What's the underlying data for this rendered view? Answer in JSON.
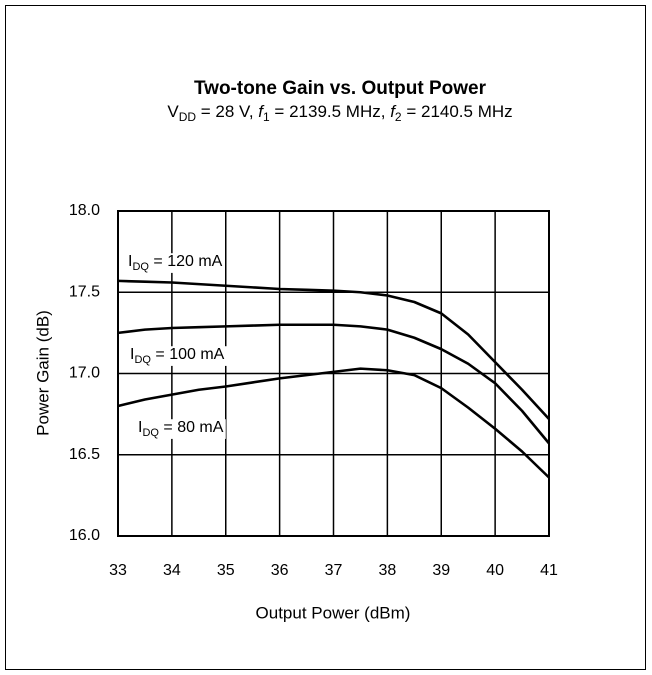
{
  "chart_data": {
    "type": "line",
    "title": "Two-tone Gain vs. Output Power",
    "subtitle_parts": [
      {
        "text": "V"
      },
      {
        "text": "DD",
        "sub": true
      },
      {
        "text": " = 28 V, "
      },
      {
        "text": "f",
        "italic": true
      },
      {
        "text": "1",
        "sub": true
      },
      {
        "text": " = 2139.5 MHz, "
      },
      {
        "text": "f",
        "italic": true
      },
      {
        "text": "2",
        "sub": true
      },
      {
        "text": " = 2140.5 MHz"
      }
    ],
    "x_label": "Output Power (dBm)",
    "y_label": "Power Gain (dB)",
    "x": [
      33,
      33.5,
      34,
      34.5,
      35,
      35.5,
      36,
      36.5,
      37,
      37.5,
      38,
      38.5,
      39,
      39.5,
      40,
      40.5,
      41
    ],
    "series": [
      {
        "name_parts": [
          {
            "text": "I"
          },
          {
            "text": "DQ",
            "sub": true
          },
          {
            "text": " = 120 mA"
          }
        ],
        "color": "#000000",
        "values": [
          17.57,
          17.565,
          17.56,
          17.55,
          17.54,
          17.53,
          17.52,
          17.515,
          17.51,
          17.5,
          17.48,
          17.44,
          17.37,
          17.24,
          17.07,
          16.9,
          16.72
        ]
      },
      {
        "name_parts": [
          {
            "text": "I"
          },
          {
            "text": "DQ",
            "sub": true
          },
          {
            "text": " = 100 mA"
          }
        ],
        "color": "#000000",
        "values": [
          17.25,
          17.27,
          17.28,
          17.285,
          17.29,
          17.295,
          17.3,
          17.3,
          17.3,
          17.29,
          17.27,
          17.22,
          17.15,
          17.06,
          16.94,
          16.77,
          16.57
        ]
      },
      {
        "name_parts": [
          {
            "text": "I"
          },
          {
            "text": "DQ",
            "sub": true
          },
          {
            "text": " = 80 mA"
          }
        ],
        "color": "#000000",
        "values": [
          16.8,
          16.84,
          16.87,
          16.9,
          16.92,
          16.945,
          16.97,
          16.99,
          17.01,
          17.03,
          17.02,
          16.99,
          16.91,
          16.79,
          16.66,
          16.52,
          16.36
        ]
      }
    ],
    "xlim": [
      33,
      41
    ],
    "xticks": [
      33,
      34,
      35,
      36,
      37,
      38,
      39,
      40,
      41
    ],
    "ylim": [
      16,
      18
    ],
    "yticks": [
      {
        "value": 16,
        "label": "16.0"
      },
      {
        "value": 16.5,
        "label": "16.5"
      },
      {
        "value": 17,
        "label": "17.0"
      },
      {
        "value": 17.5,
        "label": "17.5"
      },
      {
        "value": 18,
        "label": "18.0"
      }
    ],
    "grid": true
  }
}
